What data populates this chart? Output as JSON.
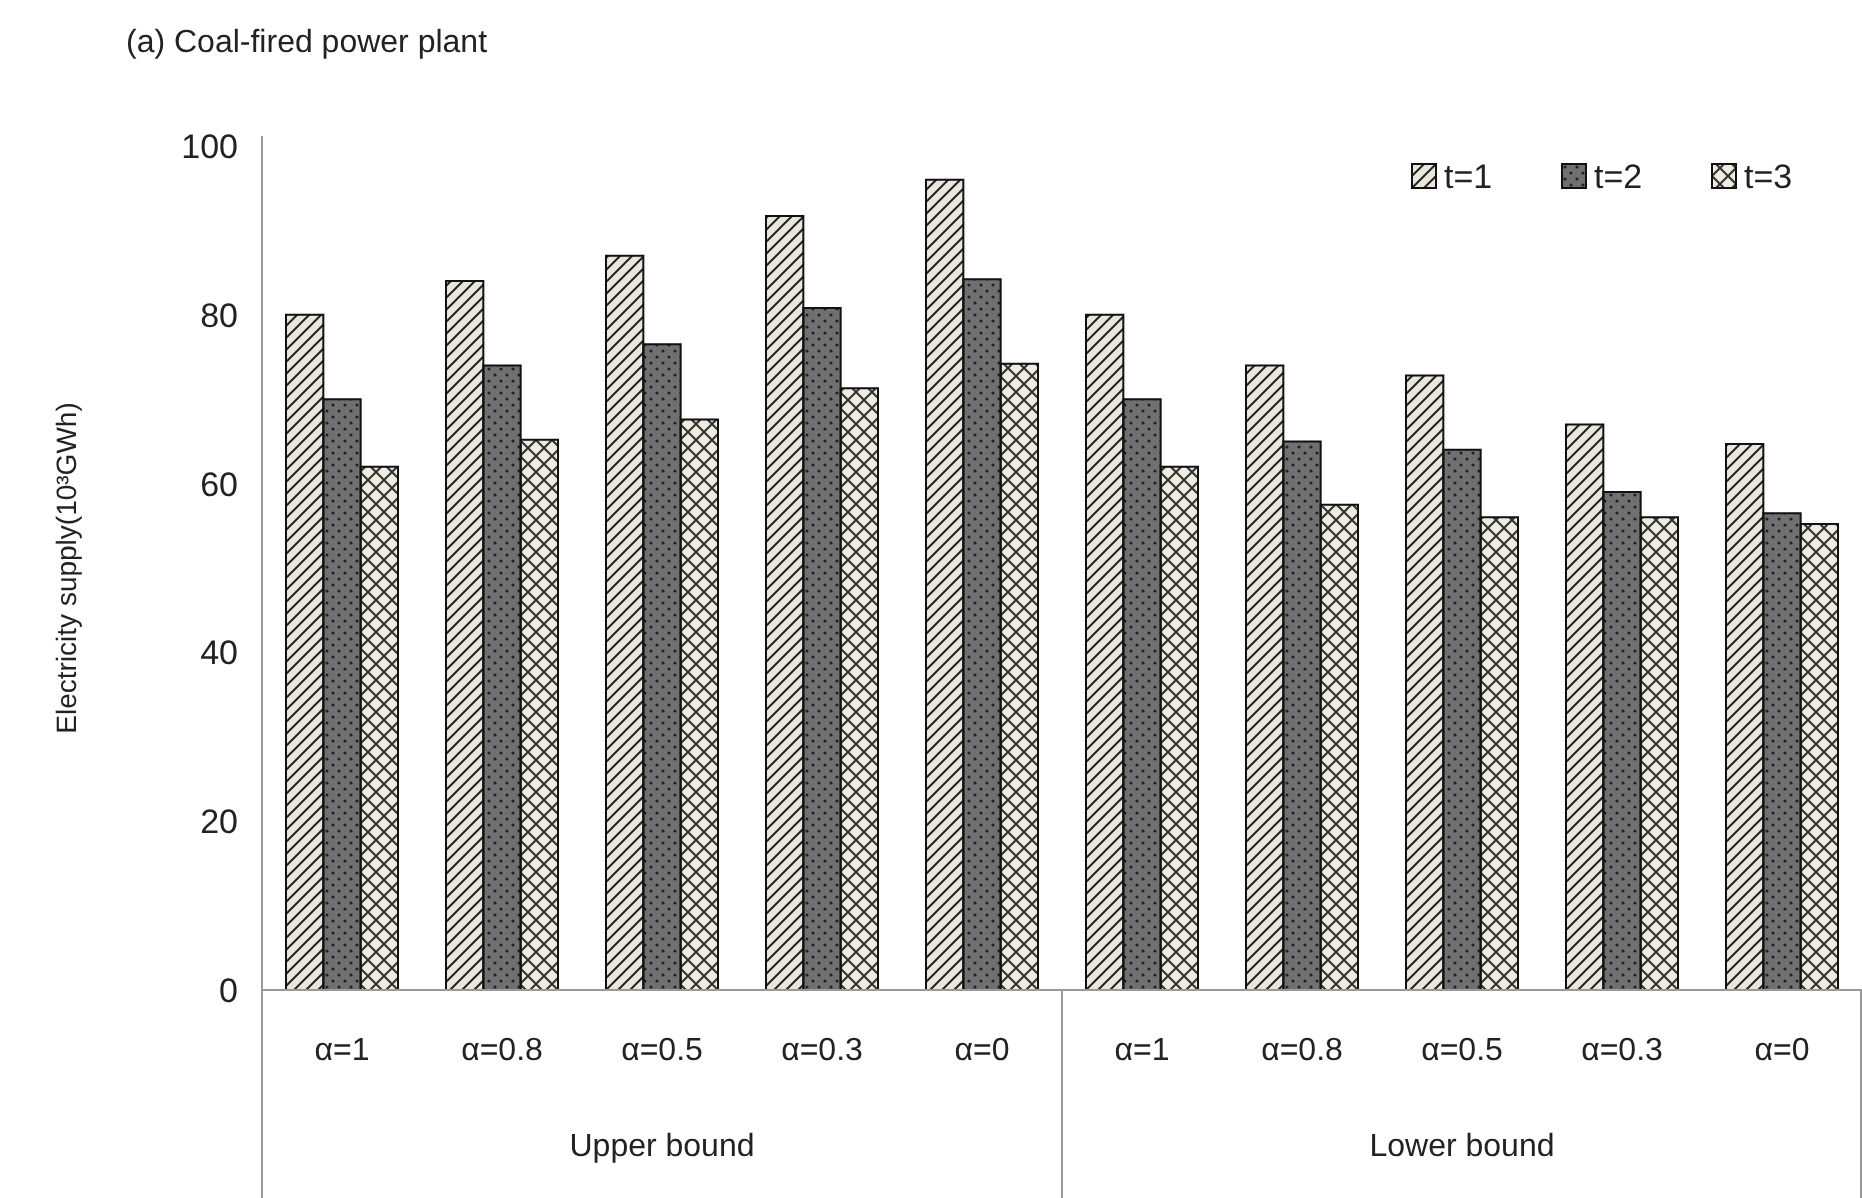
{
  "chart_data": {
    "type": "bar",
    "title": "(a) Coal-fired power plant",
    "ylabel": "Electricity supply(10³GWh)",
    "categories": [
      "α=1",
      "α=0.8",
      "α=0.5",
      "α=0.3",
      "α=0",
      "α=1",
      "α=0.8",
      "α=0.5",
      "α=0.3",
      "α=0"
    ],
    "annotations": [
      "Upper bound",
      "Lower bound"
    ],
    "series": [
      {
        "name": "t=1",
        "color": "#e9e7dc",
        "values": [
          80,
          84,
          87,
          91.7,
          96,
          80,
          74,
          72.8,
          67,
          64.7
        ]
      },
      {
        "name": "t=2",
        "color": "#707070",
        "values": [
          70,
          74,
          76.5,
          80.8,
          84.2,
          70,
          65,
          64,
          59,
          56.5
        ]
      },
      {
        "name": "t=3",
        "color": "#eeebdf",
        "values": [
          62,
          65.2,
          67.6,
          71.3,
          74.2,
          62,
          57.5,
          56,
          56,
          55.2
        ]
      }
    ],
    "ylim": [
      0,
      100
    ],
    "yticks": [
      0,
      20,
      40,
      60,
      80,
      100
    ],
    "grid": false,
    "legend": "top right"
  }
}
